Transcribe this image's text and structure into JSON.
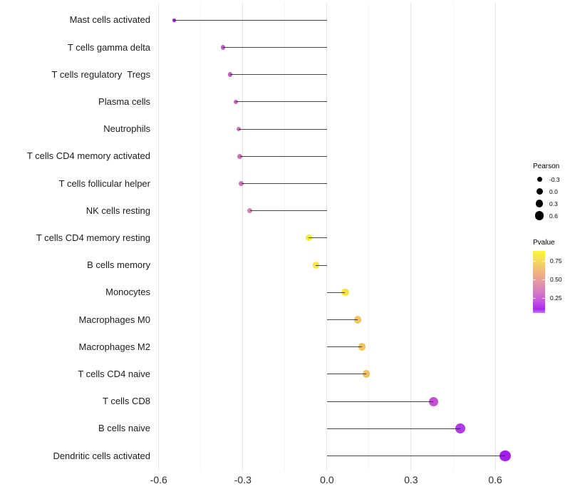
{
  "chart_data": {
    "type": "scatter",
    "variant": "lollipop",
    "title": "",
    "xlabel": "",
    "ylabel": "",
    "xlim": [
      -0.62,
      0.765
    ],
    "grid": "vertical-only",
    "x_ticks": [
      {
        "value": -0.6,
        "label": "-0.6"
      },
      {
        "value": -0.3,
        "label": "-0.3"
      },
      {
        "value": 0.0,
        "label": "0.0"
      },
      {
        "value": 0.3,
        "label": "0.3"
      },
      {
        "value": 0.6,
        "label": "0.6"
      }
    ],
    "x_minor_gridlines": [
      -0.45,
      -0.15,
      0.15,
      0.45
    ],
    "points": [
      {
        "label": "Mast cells activated",
        "pearson": -0.545,
        "dot_color": "#a01ff0"
      },
      {
        "label": "T cells gamma delta",
        "pearson": -0.37,
        "dot_color": "#be5cc6"
      },
      {
        "label": "T cells regulatory  Tregs",
        "pearson": -0.345,
        "dot_color": "#c161c3"
      },
      {
        "label": "Plasma cells",
        "pearson": -0.325,
        "dot_color": "#c567be"
      },
      {
        "label": "Neutrophils",
        "pearson": -0.315,
        "dot_color": "#cc73b8"
      },
      {
        "label": "T cells CD4 memory activated",
        "pearson": -0.31,
        "dot_color": "#cc74b8"
      },
      {
        "label": "T cells follicular helper",
        "pearson": -0.305,
        "dot_color": "#ce77b5"
      },
      {
        "label": "NK cells resting",
        "pearson": -0.275,
        "dot_color": "#d483b0"
      },
      {
        "label": "T cells CD4 memory resting",
        "pearson": -0.065,
        "dot_color": "#f6ea3e"
      },
      {
        "label": "B cells memory",
        "pearson": -0.04,
        "dot_color": "#f6ea3c"
      },
      {
        "label": "Monocytes",
        "pearson": 0.065,
        "dot_color": "#f6e43e"
      },
      {
        "label": "Macrophages M0",
        "pearson": 0.11,
        "dot_color": "#f1c45e"
      },
      {
        "label": "Macrophages M2",
        "pearson": 0.125,
        "dot_color": "#f0c35d"
      },
      {
        "label": "T cells CD4 naive",
        "pearson": 0.14,
        "dot_color": "#efc160"
      },
      {
        "label": "T cells CD8",
        "pearson": 0.38,
        "dot_color": "#c24fd4"
      },
      {
        "label": "B cells naive",
        "pearson": 0.475,
        "dot_color": "#af3be2"
      },
      {
        "label": "Dendritic cells activated",
        "pearson": 0.635,
        "dot_color": "#a21ff0"
      }
    ],
    "legend_size": {
      "title": "Pearson",
      "entries": [
        "-0.3",
        "0.0",
        "0.3",
        "0.6"
      ]
    },
    "legend_color": {
      "title": "Pvalue",
      "tick_labels": [
        "0.75",
        "0.50",
        "0.25"
      ],
      "gradient_top_color": "#fcf63e",
      "gradient_bottom_color": "#a928f0"
    }
  },
  "colors": {
    "stem": "#262626",
    "grid_major": "#e6e6e6",
    "grid_minor": "#f4f4f4",
    "axis_text": "#2e2e2e",
    "background": "#ffffff"
  }
}
